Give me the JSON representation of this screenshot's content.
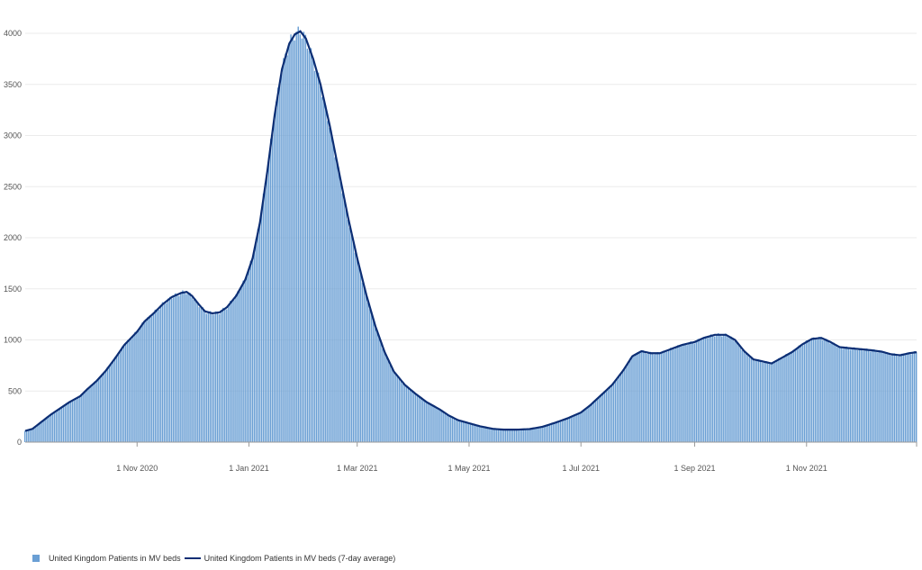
{
  "colors": {
    "bars": "#6a9fd4",
    "line": "#0c2e74",
    "grid": "#ebebeb",
    "axis": "#555555"
  },
  "legend": {
    "bars_label": "United Kingdom Patients in MV beds",
    "line_label": "United Kingdom Patients in MV beds (7-day average)"
  },
  "chart_data": {
    "type": "bar",
    "x_start": "2020-09-01",
    "x_end": "2021-12-31",
    "ylim": [
      0,
      4000
    ],
    "y_ticks": [
      0,
      500,
      1000,
      1500,
      2000,
      2500,
      3000,
      3500,
      4000
    ],
    "x_ticks": [
      {
        "date": "2020-11-01",
        "label": "1 Nov 2020"
      },
      {
        "date": "2021-01-01",
        "label": "1 Jan 2021"
      },
      {
        "date": "2021-03-01",
        "label": "1 Mar 2021"
      },
      {
        "date": "2021-05-01",
        "label": "1 May 2021"
      },
      {
        "date": "2021-07-01",
        "label": "1 Jul 2021"
      },
      {
        "date": "2021-09-01",
        "label": "1 Sep 2021"
      },
      {
        "date": "2021-11-01",
        "label": "1 Nov 2021"
      },
      {
        "date": "2021-12-31",
        "label": ""
      }
    ],
    "grid": true,
    "legend_position": "bottom-left",
    "series": [
      {
        "name": "United Kingdom Patients in MV beds",
        "type": "bar"
      },
      {
        "name": "United Kingdom Patients in MV beds (7-day average)",
        "type": "line"
      }
    ],
    "points": [
      [
        "2020-09-01",
        110
      ],
      [
        "2020-09-05",
        130
      ],
      [
        "2020-09-10",
        200
      ],
      [
        "2020-09-15",
        270
      ],
      [
        "2020-09-20",
        330
      ],
      [
        "2020-09-25",
        390
      ],
      [
        "2020-10-01",
        450
      ],
      [
        "2020-10-05",
        520
      ],
      [
        "2020-10-10",
        600
      ],
      [
        "2020-10-15",
        700
      ],
      [
        "2020-10-20",
        820
      ],
      [
        "2020-10-25",
        950
      ],
      [
        "2020-11-01",
        1080
      ],
      [
        "2020-11-05",
        1180
      ],
      [
        "2020-11-10",
        1260
      ],
      [
        "2020-11-15",
        1350
      ],
      [
        "2020-11-20",
        1420
      ],
      [
        "2020-11-25",
        1460
      ],
      [
        "2020-11-28",
        1470
      ],
      [
        "2020-12-01",
        1430
      ],
      [
        "2020-12-05",
        1340
      ],
      [
        "2020-12-08",
        1280
      ],
      [
        "2020-12-12",
        1260
      ],
      [
        "2020-12-16",
        1270
      ],
      [
        "2020-12-20",
        1320
      ],
      [
        "2020-12-25",
        1430
      ],
      [
        "2020-12-30",
        1590
      ],
      [
        "2021-01-03",
        1800
      ],
      [
        "2021-01-07",
        2150
      ],
      [
        "2021-01-11",
        2650
      ],
      [
        "2021-01-15",
        3200
      ],
      [
        "2021-01-19",
        3650
      ],
      [
        "2021-01-23",
        3900
      ],
      [
        "2021-01-26",
        3990
      ],
      [
        "2021-01-29",
        4020
      ],
      [
        "2021-02-01",
        3950
      ],
      [
        "2021-02-05",
        3750
      ],
      [
        "2021-02-09",
        3500
      ],
      [
        "2021-02-14",
        3100
      ],
      [
        "2021-02-19",
        2650
      ],
      [
        "2021-02-24",
        2200
      ],
      [
        "2021-03-01",
        1800
      ],
      [
        "2021-03-06",
        1440
      ],
      [
        "2021-03-11",
        1130
      ],
      [
        "2021-03-16",
        880
      ],
      [
        "2021-03-21",
        690
      ],
      [
        "2021-03-27",
        560
      ],
      [
        "2021-04-02",
        470
      ],
      [
        "2021-04-08",
        390
      ],
      [
        "2021-04-15",
        320
      ],
      [
        "2021-04-20",
        260
      ],
      [
        "2021-04-25",
        215
      ],
      [
        "2021-05-01",
        185
      ],
      [
        "2021-05-07",
        155
      ],
      [
        "2021-05-14",
        130
      ],
      [
        "2021-05-20",
        122
      ],
      [
        "2021-05-27",
        122
      ],
      [
        "2021-06-03",
        128
      ],
      [
        "2021-06-10",
        150
      ],
      [
        "2021-06-17",
        190
      ],
      [
        "2021-06-24",
        235
      ],
      [
        "2021-07-01",
        290
      ],
      [
        "2021-07-06",
        360
      ],
      [
        "2021-07-12",
        460
      ],
      [
        "2021-07-18",
        560
      ],
      [
        "2021-07-24",
        700
      ],
      [
        "2021-07-29",
        840
      ],
      [
        "2021-08-03",
        890
      ],
      [
        "2021-08-08",
        870
      ],
      [
        "2021-08-13",
        870
      ],
      [
        "2021-08-19",
        910
      ],
      [
        "2021-08-25",
        950
      ],
      [
        "2021-09-01",
        980
      ],
      [
        "2021-09-06",
        1020
      ],
      [
        "2021-09-12",
        1050
      ],
      [
        "2021-09-18",
        1050
      ],
      [
        "2021-09-23",
        1000
      ],
      [
        "2021-09-28",
        890
      ],
      [
        "2021-10-03",
        810
      ],
      [
        "2021-10-08",
        790
      ],
      [
        "2021-10-13",
        770
      ],
      [
        "2021-10-18",
        820
      ],
      [
        "2021-10-24",
        880
      ],
      [
        "2021-10-30",
        960
      ],
      [
        "2021-11-04",
        1010
      ],
      [
        "2021-11-09",
        1020
      ],
      [
        "2021-11-14",
        980
      ],
      [
        "2021-11-19",
        930
      ],
      [
        "2021-11-24",
        920
      ],
      [
        "2021-11-30",
        910
      ],
      [
        "2021-12-06",
        900
      ],
      [
        "2021-12-12",
        885
      ],
      [
        "2021-12-17",
        860
      ],
      [
        "2021-12-22",
        850
      ],
      [
        "2021-12-27",
        870
      ],
      [
        "2021-12-31",
        880
      ]
    ]
  }
}
